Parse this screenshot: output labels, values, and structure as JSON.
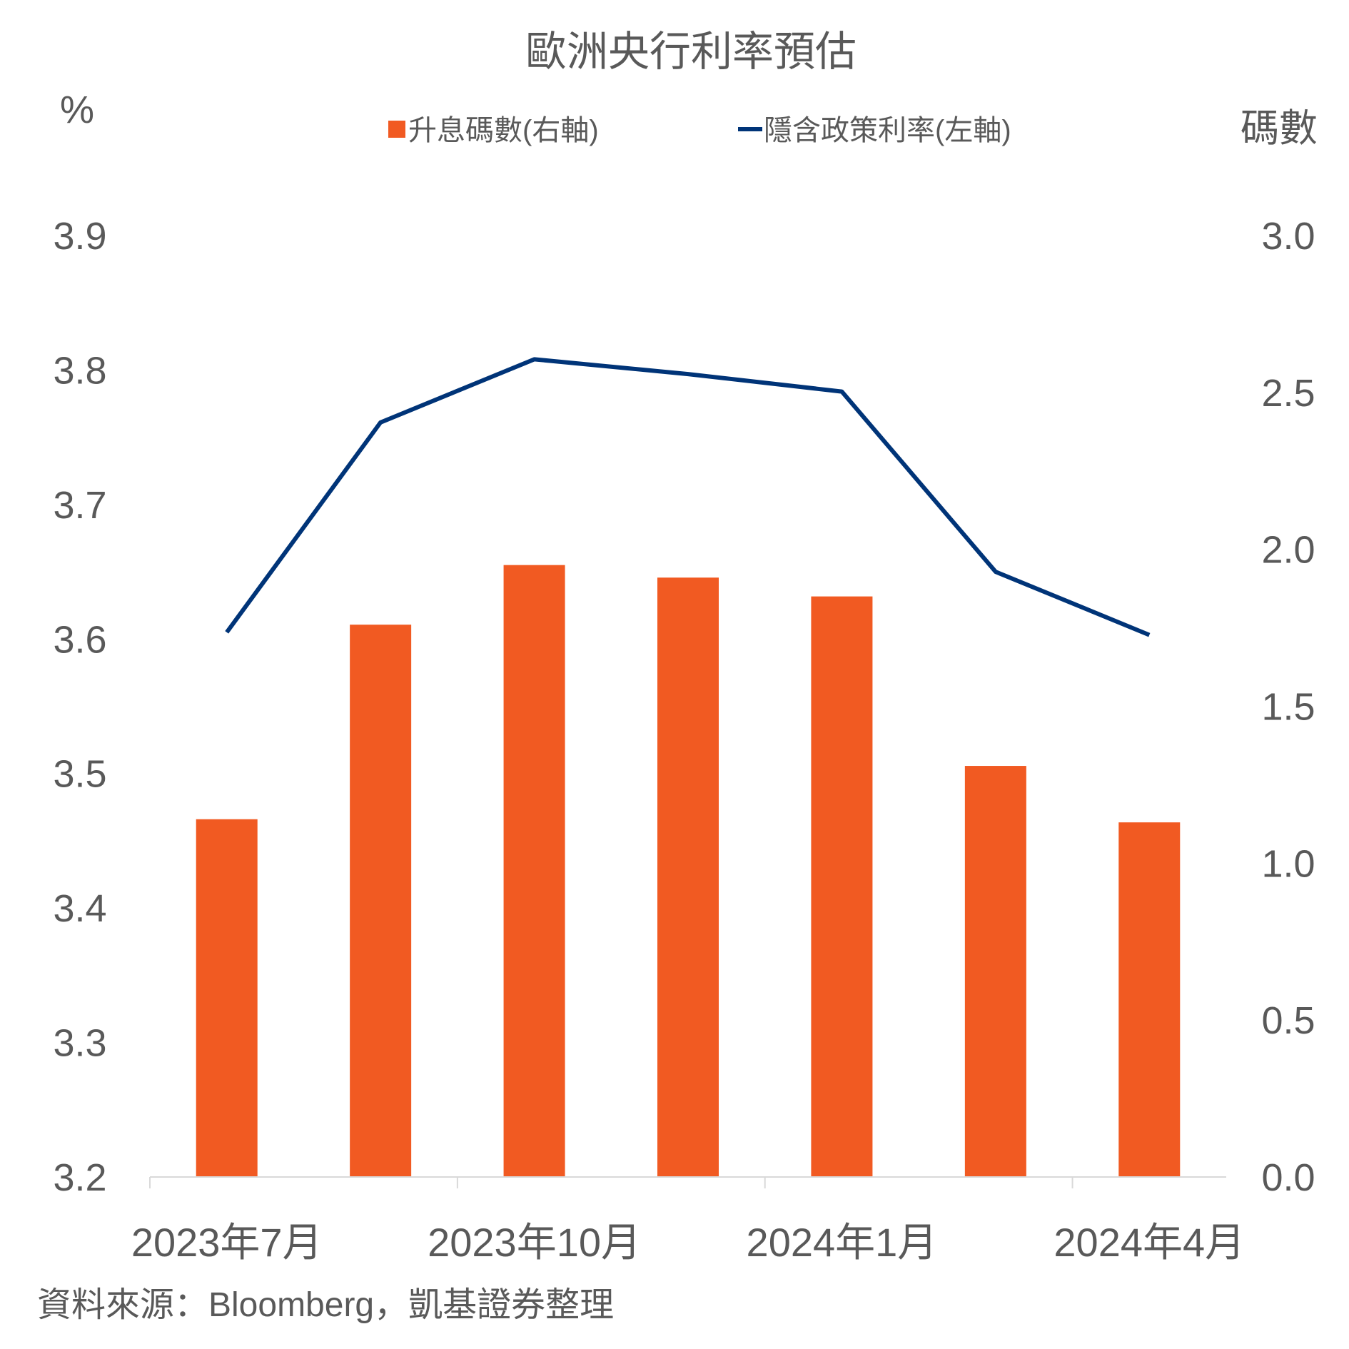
{
  "chart_data": {
    "type": "bar+line",
    "title": "歐洲央行利率預估",
    "left_axis_unit": "%",
    "right_axis_unit": "碼數",
    "left_axis": {
      "ylim": [
        3.2,
        3.9
      ],
      "ticks": [
        "3.9",
        "3.8",
        "3.7",
        "3.6",
        "3.5",
        "3.4",
        "3.3",
        "3.2"
      ],
      "tick_values": [
        3.9,
        3.8,
        3.7,
        3.6,
        3.5,
        3.4,
        3.3,
        3.2
      ]
    },
    "right_axis": {
      "ylim": [
        0.0,
        3.0
      ],
      "ticks": [
        "3.0",
        "2.5",
        "2.0",
        "1.5",
        "1.0",
        "0.5",
        "0.0"
      ],
      "tick_values": [
        3.0,
        2.5,
        2.0,
        1.5,
        1.0,
        0.5,
        0.0
      ]
    },
    "x_tick_labels": [
      {
        "index": 0,
        "label": "2023年7月"
      },
      {
        "index": 2,
        "label": "2023年10月"
      },
      {
        "index": 4,
        "label": "2024年1月"
      },
      {
        "index": 6,
        "label": "2024年4月"
      }
    ],
    "series": [
      {
        "name": "升息碼數(右軸)",
        "type": "bar",
        "axis": "right",
        "color": "#F15A22",
        "values": [
          1.14,
          1.76,
          1.95,
          1.91,
          1.85,
          1.31,
          1.13
        ]
      },
      {
        "name": "隱含政策利率(左軸)",
        "type": "line",
        "axis": "left",
        "color": "#003478",
        "values": [
          3.605,
          3.761,
          3.808,
          3.797,
          3.784,
          3.65,
          3.603
        ]
      }
    ],
    "legend_position": "top-center",
    "source": "資料來源：Bloomberg，凱基證券整理"
  }
}
